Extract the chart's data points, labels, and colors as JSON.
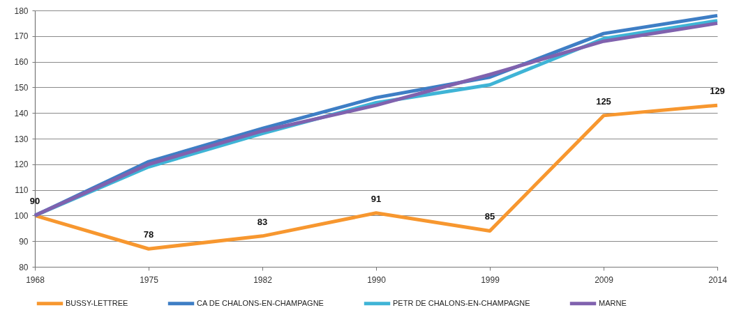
{
  "chart_data": {
    "type": "line",
    "categories": [
      "1968",
      "1975",
      "1982",
      "1990",
      "1999",
      "2009",
      "2014"
    ],
    "series": [
      {
        "name": "BUSSY-LETTREE",
        "color": "#f7972f",
        "values": [
          100,
          87,
          92,
          101,
          94,
          139,
          143
        ]
      },
      {
        "name": "CA DE CHALONS-EN-CHAMPAGNE",
        "color": "#3e7ec5",
        "values": [
          100,
          121,
          134,
          146,
          154,
          171,
          178
        ]
      },
      {
        "name": "PETR DE CHALONS-EN-CHAMPAGNE",
        "color": "#3fb4d6",
        "values": [
          100,
          119,
          132,
          144,
          151,
          169,
          176
        ]
      },
      {
        "name": "MARNE",
        "color": "#8062ae",
        "values": [
          100,
          120,
          133,
          143,
          155,
          168,
          175
        ]
      }
    ],
    "annotations": [
      {
        "text": "90",
        "x": "1968",
        "y": 100
      },
      {
        "text": "78",
        "x": "1975",
        "y": 87
      },
      {
        "text": "83",
        "x": "1982",
        "y": 92
      },
      {
        "text": "91",
        "x": "1990",
        "y": 101
      },
      {
        "text": "85",
        "x": "1999",
        "y": 94
      },
      {
        "text": "125",
        "x": "2009",
        "y": 139
      },
      {
        "text": "129",
        "x": "2014",
        "y": 143
      }
    ],
    "ylim": [
      80,
      180
    ],
    "yticks": [
      80,
      90,
      100,
      110,
      120,
      130,
      140,
      150,
      160,
      170,
      180
    ],
    "grid": "y",
    "legend": "bottom"
  }
}
